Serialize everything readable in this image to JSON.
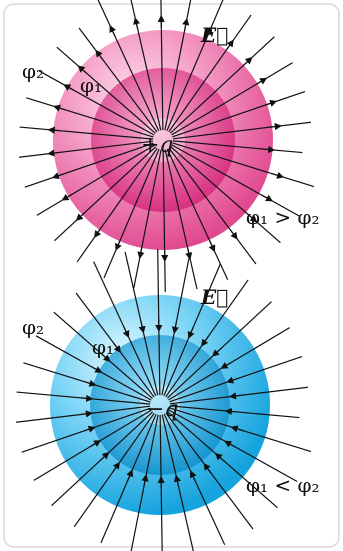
{
  "diagram": {
    "positive": {
      "charge_label": "+q",
      "field_label": "E⃗",
      "outer_potential_label": "φ₂",
      "inner_potential_label": "φ₁",
      "relation_label": "φ₁ > φ₂",
      "colors": {
        "outer": "#f07fb3",
        "inner": "#e94f97",
        "core": "#d81b72",
        "highlight": "#fbd2e5"
      }
    },
    "negative": {
      "charge_label": "−q",
      "field_label": "E⃗",
      "outer_potential_label": "φ₂",
      "inner_potential_label": "φ₁",
      "relation_label": "φ₁ < φ₂",
      "colors": {
        "outer": "#5ed0f5",
        "inner": "#21b0e8",
        "core": "#0e9ad3",
        "highlight": "#d6f3fd"
      }
    }
  }
}
